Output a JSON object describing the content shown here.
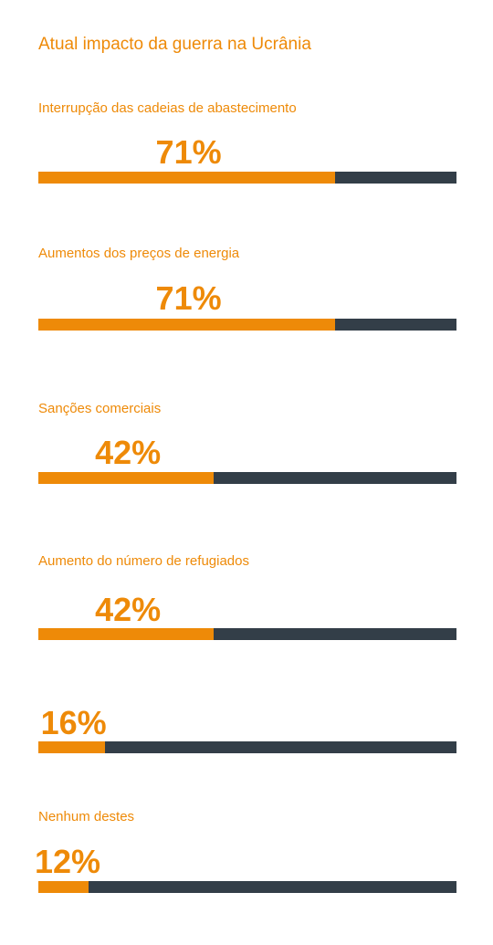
{
  "chart_data": {
    "type": "bar",
    "title": "Atual impacto da guerra na Ucrânia",
    "categories": [
      "Interrupção das cadeias de abastecimento",
      "Aumentos dos preços de energia",
      "Sanções comerciais",
      "Aumento do número de refugiados",
      "",
      "Nenhum destes"
    ],
    "values": [
      71,
      71,
      42,
      42,
      16,
      12
    ],
    "value_labels": [
      "71%",
      "71%",
      "42%",
      "42%",
      "16%",
      "12%"
    ],
    "unit": "%",
    "xlim": [
      0,
      100
    ],
    "orientation": "horizontal",
    "grid": false,
    "legend": "none",
    "colors": {
      "accent": "#ee8a08",
      "track": "#333e48"
    }
  }
}
